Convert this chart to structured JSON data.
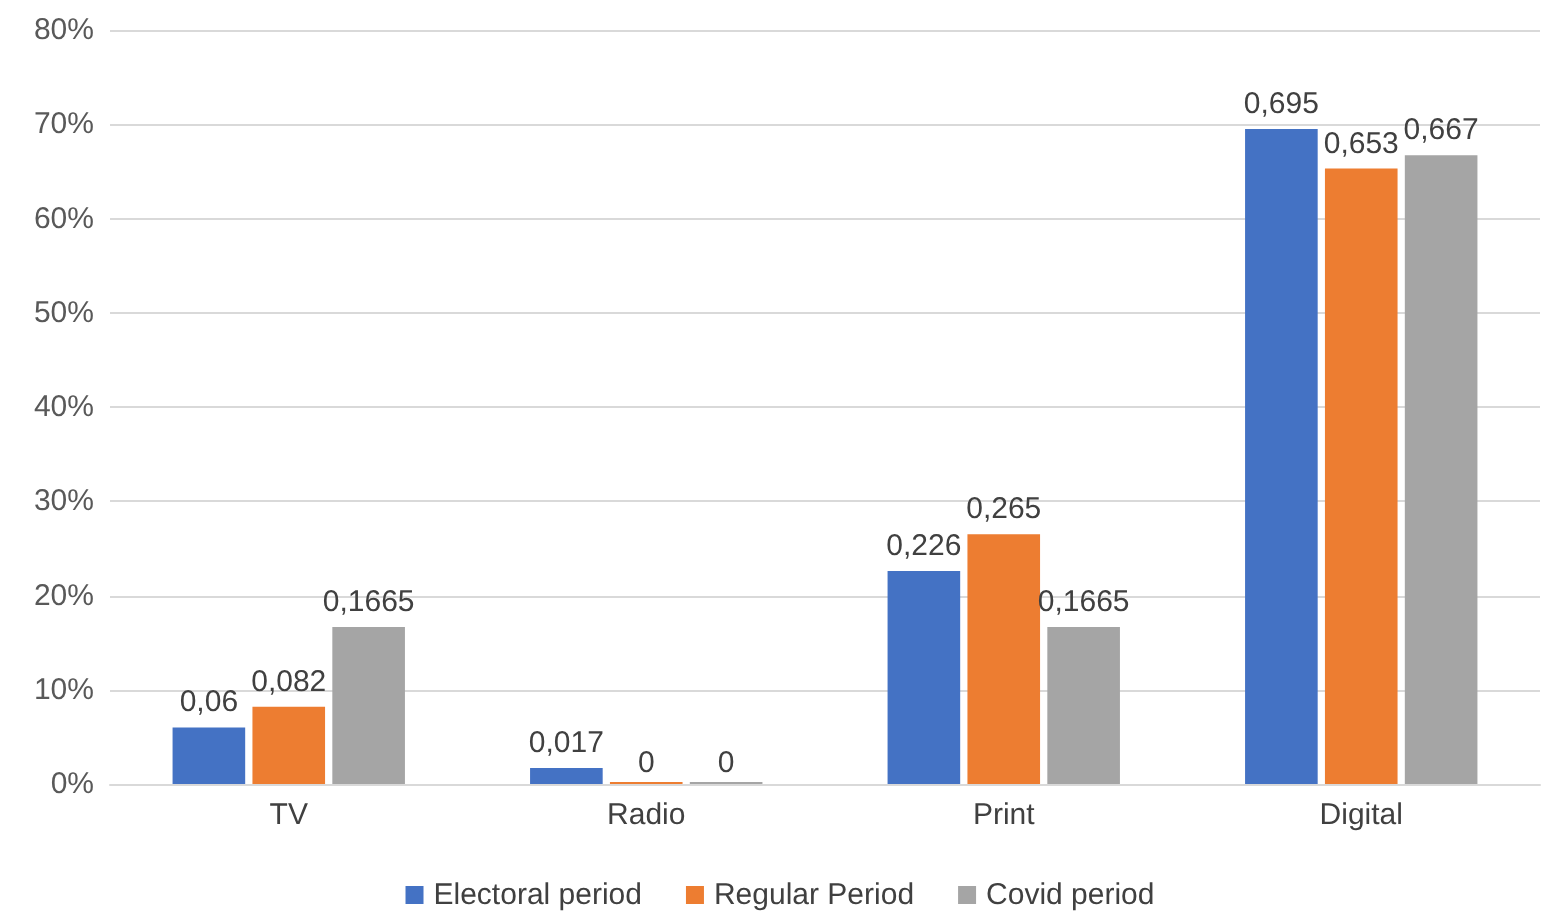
{
  "chart_data": {
    "type": "bar",
    "categories": [
      "TV",
      "Radio",
      "Print",
      "Digital"
    ],
    "series": [
      {
        "name": "Electoral period",
        "color": "#4472c4",
        "values": [
          0.06,
          0.017,
          0.226,
          0.695
        ],
        "value_labels": [
          "0,06",
          "0,017",
          "0,226",
          "0,695"
        ]
      },
      {
        "name": "Regular Period",
        "color": "#ed7d31",
        "values": [
          0.082,
          0,
          0.265,
          0.653
        ],
        "value_labels": [
          "0,082",
          "0",
          "0,265",
          "0,653"
        ]
      },
      {
        "name": "Covid period",
        "color": "#a5a5a5",
        "values": [
          0.1665,
          0,
          0.1665,
          0.667
        ],
        "value_labels": [
          "0,1665",
          "0",
          "0,1665",
          "0,667"
        ]
      }
    ],
    "ylim": [
      0,
      0.8
    ],
    "yticks": [
      {
        "value": 0,
        "label": "0%"
      },
      {
        "value": 0.1,
        "label": "10%"
      },
      {
        "value": 0.2,
        "label": "20%"
      },
      {
        "value": 0.3,
        "label": "30%"
      },
      {
        "value": 0.4,
        "label": "40%"
      },
      {
        "value": 0.5,
        "label": "50%"
      },
      {
        "value": 0.6,
        "label": "60%"
      },
      {
        "value": 0.7,
        "label": "70%"
      },
      {
        "value": 0.8,
        "label": "80%"
      }
    ],
    "grid": "y",
    "legend": "bottom"
  }
}
